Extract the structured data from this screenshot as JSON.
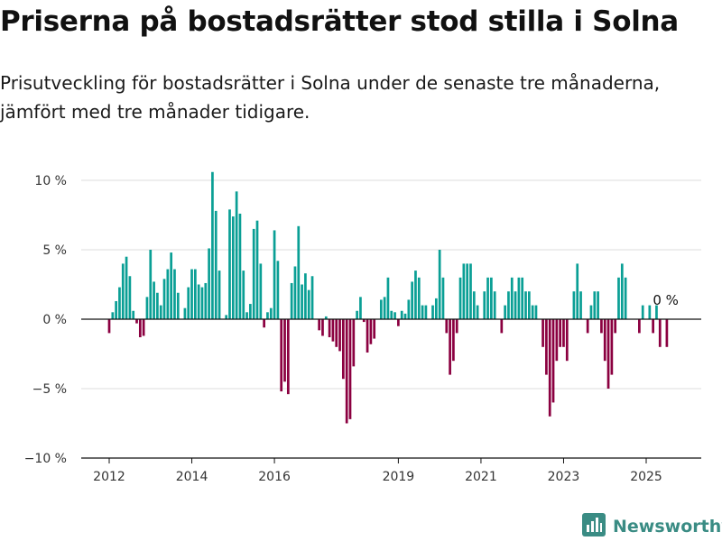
{
  "header": {
    "title": "Priserna på bostadsrätter stod stilla i Solna",
    "subtitle": "Prisutveckling för bostadsrätter i Solna under de senaste tre månaderna, jämfört med tre månader tidigare."
  },
  "brand": {
    "name": "Newsworthy",
    "icon": "bar-chart-logo-icon"
  },
  "colors": {
    "positive": "#0a9f95",
    "negative": "#8b0040",
    "grid": "#dddddd",
    "axis": "#111111"
  },
  "chart_data": {
    "type": "bar",
    "title": "Priserna på bostadsrätter stod stilla i Solna",
    "subtitle": "Prisutveckling för bostadsrätter i Solna under de senaste tre månaderna, jämfört med tre månader tidigare.",
    "x_unit": "month",
    "x_ticks": [
      "2012",
      "2014",
      "2016",
      "2019",
      "2021",
      "2023",
      "2025"
    ],
    "y_ticks": [
      {
        "value": 10,
        "label": "10 %"
      },
      {
        "value": 5,
        "label": "5 %"
      },
      {
        "value": 0,
        "label": "0 %"
      },
      {
        "value": -5,
        "label": "−5 %"
      },
      {
        "value": -10,
        "label": "−10 %"
      }
    ],
    "ylim": [
      -10,
      11
    ],
    "grid": true,
    "annotation": {
      "text": "0 %",
      "date": "2025-03"
    },
    "series": [
      {
        "start": "2012-01",
        "values": [
          -1.0,
          0.5,
          1.3,
          2.3,
          4.0,
          4.5,
          3.1,
          0.6,
          -0.3,
          -1.3,
          -1.2,
          1.6,
          5.0,
          2.7,
          1.9,
          1.0,
          2.9,
          3.6,
          4.8,
          3.6,
          1.9,
          0.0,
          0.8,
          2.3,
          3.6,
          3.6,
          2.5,
          2.3,
          2.6,
          5.1,
          10.6,
          7.8,
          3.5,
          0.0,
          0.3,
          7.9,
          7.4,
          9.2,
          7.6,
          3.5,
          0.5,
          1.1,
          6.5,
          7.1,
          4.0,
          -0.6,
          0.5,
          0.8,
          6.4,
          4.2,
          -5.2,
          -4.5,
          -5.4,
          2.6,
          3.8,
          6.7,
          2.5,
          3.3,
          2.1,
          3.1,
          0.0,
          -0.8,
          -1.2,
          0.2,
          -1.3,
          -1.6,
          -2.0,
          -2.3,
          -4.3,
          -7.5,
          -7.2,
          -3.4,
          0.6,
          1.6,
          -0.2,
          -2.4,
          -1.8,
          -1.4,
          0.0,
          1.4,
          1.6,
          3.0,
          0.6,
          0.5,
          -0.5,
          0.6,
          0.4,
          1.4,
          2.7,
          3.5,
          3.0,
          1.0,
          1.0,
          0.0,
          1.0,
          1.5,
          5.0,
          3.0,
          -1.0,
          -4.0,
          -3.0,
          -1.0,
          3.0,
          4.0,
          4.0,
          4.0,
          2.0,
          1.0,
          0.0,
          2.0,
          3.0,
          3.0,
          2.0,
          0.0,
          -1.0,
          1.0,
          2.0,
          3.0,
          2.0,
          3.0,
          3.0,
          2.0,
          2.0,
          1.0,
          1.0,
          0.0,
          -2.0,
          -4.0,
          -7.0,
          -6.0,
          -3.0,
          -2.0,
          -2.0,
          -3.0,
          0.0,
          2.0,
          4.0,
          2.0,
          0.0,
          -1.0,
          1.0,
          2.0,
          2.0,
          -1.0,
          -3.0,
          -5.0,
          -4.0,
          -1.0,
          3.0,
          4.0,
          3.0,
          0.0,
          0.0,
          0.0,
          -1.0,
          1.0,
          0.0,
          1.0,
          -1.0,
          1.0,
          -2.0,
          0.0,
          -2.0,
          0.0
        ]
      }
    ]
  }
}
